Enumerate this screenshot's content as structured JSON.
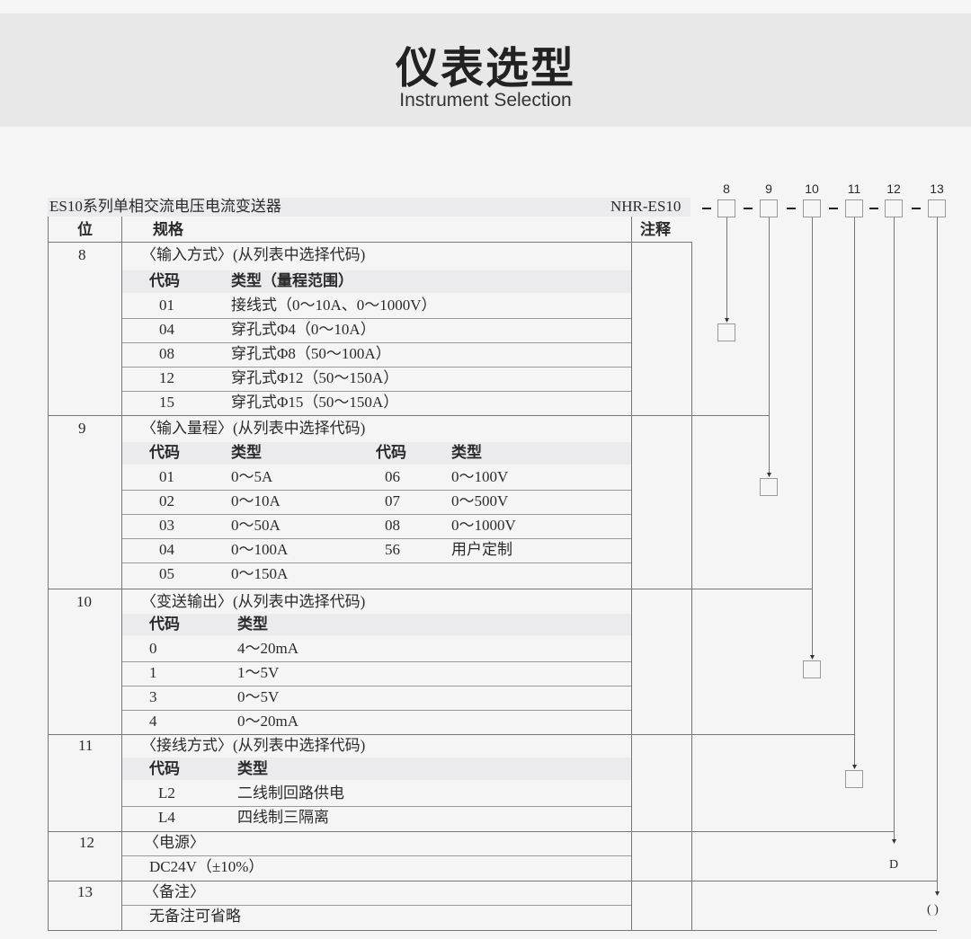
{
  "header": {
    "title": "仪表选型",
    "subtitle": "Instrument Selection"
  },
  "table": {
    "name": "ES10系列单相交流电压电流变送器",
    "model": "NHR-ES10",
    "col_position": "位",
    "col_spec": "规格",
    "col_note": "注释",
    "code_label": "代码",
    "type_label": "类型",
    "sections": [
      {
        "pos": "8",
        "title": "〈输入方式〉(从列表中选择代码)",
        "type_header": "类型（量程范围）",
        "rows": [
          [
            "01",
            "接线式（0～10A、0～1000V）"
          ],
          [
            "04",
            "穿孔式Φ4（0～10A）"
          ],
          [
            "08",
            "穿孔式Φ8（50～100A）"
          ],
          [
            "12",
            "穿孔式Φ12（50～150A）"
          ],
          [
            "15",
            "穿孔式Φ15（50～150A）"
          ]
        ]
      },
      {
        "pos": "9",
        "title": "〈输入量程〉(从列表中选择代码)",
        "rows": [
          [
            "01",
            "0～5A",
            "06",
            "0～100V"
          ],
          [
            "02",
            "0～10A",
            "07",
            "0～500V"
          ],
          [
            "03",
            "0～50A",
            "08",
            "0～1000V"
          ],
          [
            "04",
            "0～100A",
            "56",
            "用户定制"
          ],
          [
            "05",
            "0～150A"
          ]
        ]
      },
      {
        "pos": "10",
        "title": "〈变送输出〉(从列表中选择代码)",
        "rows": [
          [
            "0",
            "4～20mA"
          ],
          [
            "1",
            "1～5V"
          ],
          [
            "3",
            "0～5V"
          ],
          [
            "4",
            "0～20mA"
          ]
        ]
      },
      {
        "pos": "11",
        "title": "〈接线方式〉(从列表中选择代码)",
        "rows": [
          [
            "L2",
            "二线制回路供电"
          ],
          [
            "L4",
            "四线制三隔离"
          ]
        ]
      },
      {
        "pos": "12",
        "title": "〈电源〉",
        "value": "DC24V（±10%）"
      },
      {
        "pos": "13",
        "title": "〈备注〉",
        "value": "无备注可省略"
      }
    ]
  },
  "diagram": {
    "positions": [
      "8",
      "9",
      "10",
      "11",
      "12",
      "13"
    ],
    "power_code": "D",
    "note_code": "( )"
  }
}
